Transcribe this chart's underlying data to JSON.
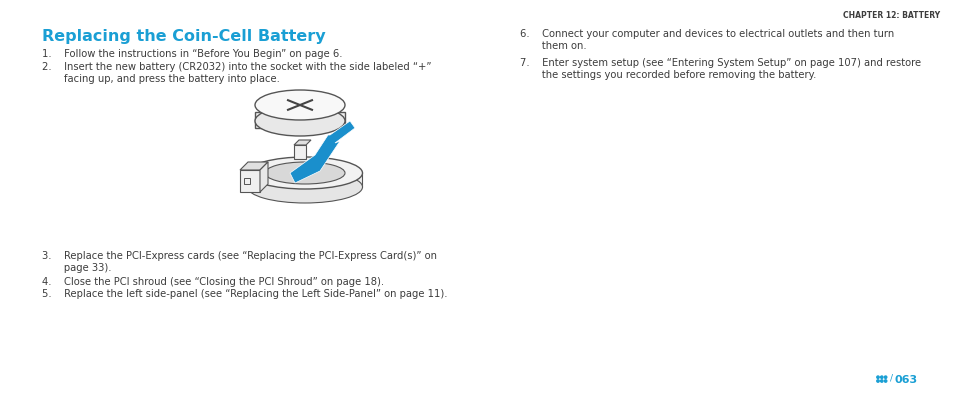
{
  "bg_color": "#ffffff",
  "chapter_label": "CHAPTER 12: BATTERY",
  "title": "Replacing the Coin-Cell Battery",
  "title_color": "#1a9fd4",
  "body_color": "#3d3d3d",
  "item1": "1.    Follow the instructions in “Before You Begin” on page 6.",
  "item2_line1": "2.    Insert the new battery (CR2032) into the socket with the side labeled “+”",
  "item2_line2": "       facing up, and press the battery into place.",
  "item3_line1": "3.    Replace the PCI-Express cards (see “Replacing the PCI-Express Card(s)” on",
  "item3_line2": "       page 33).",
  "item4": "4.    Close the PCI shroud (see “Closing the PCI Shroud” on page 18).",
  "item5": "5.    Replace the left side-panel (see “Replacing the Left Side-Panel” on page 11).",
  "item6_line1": "6.    Connect your computer and devices to electrical outlets and then turn",
  "item6_line2": "       them on.",
  "item7_line1": "7.    Enter system setup (see “Entering System Setup” on page 107) and restore",
  "item7_line2": "       the settings you recorded before removing the battery.",
  "page_icon_color": "#1a9fd4",
  "page_number": "063",
  "font_size_chapter": 5.5,
  "font_size_title": 11.5,
  "font_size_body": 7.2,
  "font_size_page": 7.5,
  "draw_color": "#555555",
  "blue_arrow": "#1a8fcc"
}
